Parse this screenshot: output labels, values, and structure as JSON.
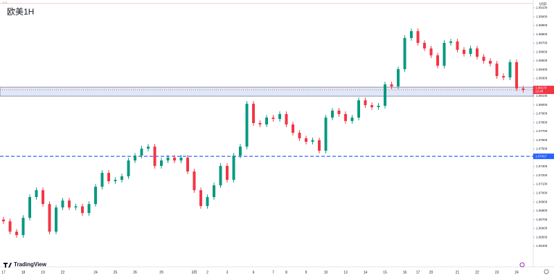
{
  "chart_data": {
    "type": "candlestick",
    "title": "欧美1H",
    "currency": "USD",
    "brand": "TradingView",
    "categories": [
      "17",
      null,
      null,
      "18",
      null,
      null,
      "19",
      null,
      null,
      "22",
      null,
      null,
      null,
      null,
      "24",
      null,
      null,
      "25",
      null,
      null,
      "26",
      null,
      null,
      null,
      "29",
      null,
      null,
      null,
      null,
      "3月",
      null,
      "2",
      null,
      null,
      "3",
      null,
      null,
      null,
      "6",
      null,
      null,
      "7",
      null,
      "8",
      null,
      null,
      "9",
      null,
      null,
      "10",
      null,
      null,
      "13",
      null,
      null,
      "14",
      null,
      null,
      "15",
      null,
      null,
      "16",
      null,
      "17",
      null,
      "20",
      null,
      null,
      null,
      "21",
      null,
      null,
      "22",
      null,
      null,
      "23",
      null,
      null,
      "24",
      null
    ],
    "open": [
      1.067,
      1.0668,
      1.06563,
      1.06524,
      1.0672,
      1.06955,
      1.07033,
      1.06876,
      1.06563,
      1.06837,
      1.06916,
      1.06837,
      1.0685,
      1.06774,
      1.06876,
      1.07072,
      1.07229,
      1.07135,
      1.0715,
      1.0719,
      1.0737,
      1.07425,
      1.07504,
      1.07527,
      1.07308,
      1.0737,
      1.07402,
      1.0737,
      1.07402,
      1.07245,
      1.07033,
      1.06853,
      1.06955,
      1.07088,
      1.07308,
      1.07151,
      1.07425,
      1.07527,
      1.08013,
      1.07794,
      1.07778,
      1.07856,
      1.07841,
      1.07896,
      1.07778,
      1.07684,
      1.07621,
      1.07582,
      1.076,
      1.0748,
      1.07856,
      1.07935,
      1.07896,
      1.07817,
      1.07856,
      1.08052,
      1.07997,
      1.07974,
      1.0799,
      1.08233,
      1.08209,
      1.08405,
      1.08758,
      1.08836,
      1.08703,
      1.0864,
      1.08562,
      1.08444,
      1.08703,
      1.08719,
      1.08625,
      1.08578,
      1.0864,
      1.08546,
      1.08499,
      1.08468,
      1.08327,
      1.08311,
      1.08484,
      1.08186
    ],
    "high": [
      1.0673,
      1.0671,
      1.06593,
      1.0675,
      1.06985,
      1.07063,
      1.07063,
      1.06906,
      1.06867,
      1.06946,
      1.06946,
      1.0688,
      1.0688,
      1.06906,
      1.07102,
      1.07259,
      1.07259,
      1.0718,
      1.0722,
      1.074,
      1.07455,
      1.07534,
      1.07557,
      1.07557,
      1.074,
      1.07432,
      1.07432,
      1.07432,
      1.07432,
      1.07275,
      1.07063,
      1.06985,
      1.07118,
      1.07338,
      1.07338,
      1.07455,
      1.07557,
      1.08043,
      1.08043,
      1.07824,
      1.07886,
      1.07886,
      1.07926,
      1.07926,
      1.07808,
      1.07714,
      1.07651,
      1.0763,
      1.0763,
      1.07886,
      1.07965,
      1.07965,
      1.07926,
      1.07886,
      1.08082,
      1.08082,
      1.08027,
      1.0802,
      1.08263,
      1.08263,
      1.08435,
      1.08788,
      1.08866,
      1.08866,
      1.08733,
      1.0867,
      1.08592,
      1.08733,
      1.08749,
      1.08749,
      1.08655,
      1.0867,
      1.0867,
      1.08576,
      1.08529,
      1.08498,
      1.08357,
      1.08514,
      1.08514,
      1.08216
    ],
    "low": [
      1.0665,
      1.06533,
      1.06494,
      1.06494,
      1.0669,
      1.06925,
      1.06846,
      1.06533,
      1.06533,
      1.06807,
      1.06807,
      1.06807,
      1.06744,
      1.06744,
      1.06846,
      1.07042,
      1.07105,
      1.07105,
      1.0712,
      1.0716,
      1.0734,
      1.07395,
      1.07474,
      1.07278,
      1.07278,
      1.0734,
      1.0734,
      1.0734,
      1.07215,
      1.07003,
      1.06823,
      1.06823,
      1.06925,
      1.07058,
      1.07121,
      1.07121,
      1.07395,
      1.07497,
      1.07764,
      1.07748,
      1.07748,
      1.07811,
      1.07811,
      1.07748,
      1.07654,
      1.07591,
      1.07552,
      1.07552,
      1.0745,
      1.0745,
      1.07826,
      1.07866,
      1.07787,
      1.07787,
      1.07826,
      1.07967,
      1.07944,
      1.07944,
      1.0796,
      1.08179,
      1.08179,
      1.08375,
      1.08728,
      1.08673,
      1.0861,
      1.08532,
      1.08414,
      1.08414,
      1.08673,
      1.08595,
      1.08548,
      1.08548,
      1.08516,
      1.08469,
      1.08438,
      1.08297,
      1.08281,
      1.08281,
      1.08156,
      1.0814
    ],
    "close": [
      1.0668,
      1.06563,
      1.06524,
      1.0672,
      1.06955,
      1.07033,
      1.06876,
      1.06563,
      1.06837,
      1.06916,
      1.06837,
      1.0685,
      1.06774,
      1.06876,
      1.07072,
      1.07229,
      1.07135,
      1.0715,
      1.0719,
      1.0737,
      1.07425,
      1.07504,
      1.07527,
      1.07308,
      1.0737,
      1.07402,
      1.0737,
      1.07402,
      1.07245,
      1.07033,
      1.06853,
      1.06955,
      1.07088,
      1.07308,
      1.07151,
      1.07425,
      1.07527,
      1.08013,
      1.07794,
      1.07778,
      1.07856,
      1.07841,
      1.07896,
      1.07778,
      1.07684,
      1.07621,
      1.07582,
      1.076,
      1.0748,
      1.07856,
      1.07935,
      1.07896,
      1.07817,
      1.07856,
      1.08052,
      1.07997,
      1.07974,
      1.0799,
      1.08233,
      1.08209,
      1.08405,
      1.08758,
      1.08836,
      1.08703,
      1.0864,
      1.08562,
      1.08444,
      1.08703,
      1.08719,
      1.08625,
      1.08578,
      1.0864,
      1.08546,
      1.08499,
      1.08468,
      1.08327,
      1.08311,
      1.08484,
      1.08186,
      1.0817
    ],
    "up_color": "#089981",
    "down_color": "#f23645",
    "ylim": [
      1.0625,
      1.0915
    ],
    "yticks": [
      {
        "value": 1.064,
        "label": "1.06400"
      },
      {
        "value": 1.065,
        "label": "1.06500"
      },
      {
        "value": 1.066,
        "label": "1.06600"
      },
      {
        "value": 1.067,
        "label": "1.06700"
      },
      {
        "value": 1.068,
        "label": "1.06800"
      },
      {
        "value": 1.069,
        "label": "1.06900"
      },
      {
        "value": 1.07,
        "label": "1.07000"
      },
      {
        "value": 1.071,
        "label": "1.07100"
      },
      {
        "value": 1.072,
        "label": "1.07200"
      },
      {
        "value": 1.073,
        "label": "1.07300"
      },
      {
        "value": 1.074,
        "label": "1.07400"
      },
      {
        "value": 1.075,
        "label": "1.07500"
      },
      {
        "value": 1.076,
        "label": "1.07600"
      },
      {
        "value": 1.077,
        "label": "1.07700"
      },
      {
        "value": 1.078,
        "label": "1.07800"
      },
      {
        "value": 1.079,
        "label": "1.07900"
      },
      {
        "value": 1.08,
        "label": "1.08000"
      },
      {
        "value": 1.081,
        "label": "1.08100"
      },
      {
        "value": 1.082,
        "label": "1.08200"
      },
      {
        "value": 1.083,
        "label": "1.08300"
      },
      {
        "value": 1.084,
        "label": "1.08400"
      },
      {
        "value": 1.085,
        "label": "1.08500"
      },
      {
        "value": 1.086,
        "label": "1.08600"
      },
      {
        "value": 1.087,
        "label": "1.08700"
      },
      {
        "value": 1.088,
        "label": "1.08800"
      },
      {
        "value": 1.089,
        "label": "1.08900"
      },
      {
        "value": 1.09,
        "label": "1.09000"
      },
      {
        "value": 1.091,
        "label": "1.09100"
      }
    ],
    "zone": [
      1.08099,
      1.08201
    ],
    "zone_color": "#c9d8f5",
    "hline": {
      "value": 1.07417,
      "label": "1.07417",
      "color": "#2962ff"
    },
    "last_price": {
      "value": 1.0817,
      "label": "1.08170",
      "countdown": "22:48"
    }
  }
}
